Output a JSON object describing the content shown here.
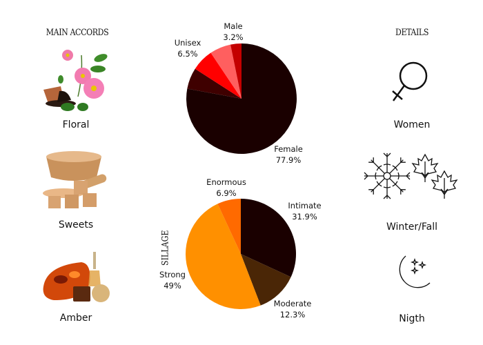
{
  "left_column": {
    "heading": "MAIN ACCORDS",
    "items": [
      {
        "label": "Floral",
        "icon": "rose-flower-image"
      },
      {
        "label": "Sweets",
        "icon": "brown-sugar-image"
      },
      {
        "label": "Amber",
        "icon": "amber-stone-image"
      }
    ]
  },
  "right_column": {
    "heading": "DETAILS",
    "items": [
      {
        "label": "Women",
        "icon": "female-symbol-icon"
      },
      {
        "label": "Winter/Fall",
        "icon": "snowflake-maple-leaves-icon"
      },
      {
        "label": "Nigth",
        "icon": "moon-stars-icon"
      }
    ]
  },
  "sillage_label": "SILLAGE",
  "chart_data": [
    {
      "type": "pie",
      "start": "top",
      "direction": "clockwise",
      "slices": [
        {
          "name": "Female",
          "value": 77.9,
          "label": "77.9%",
          "color": "#1a0000"
        },
        {
          "name": "",
          "value": 6.2,
          "label": "",
          "color": "#3f0000"
        },
        {
          "name": "Unisex",
          "value": 6.5,
          "label": "6.5%",
          "color": "#ff0000"
        },
        {
          "name": "",
          "value": 6.2,
          "label": "",
          "color": "#ff5f5f"
        },
        {
          "name": "Male",
          "value": 3.2,
          "label": "3.2%",
          "color": "#c40000"
        }
      ]
    },
    {
      "type": "pie",
      "start": "top",
      "direction": "clockwise",
      "slices": [
        {
          "name": "Intimate",
          "value": 31.9,
          "label": "31.9%",
          "color": "#1a0000"
        },
        {
          "name": "Moderate",
          "value": 12.3,
          "label": "12.3%",
          "color": "#4a2606"
        },
        {
          "name": "Strong",
          "value": 49,
          "label": "49%",
          "color": "#ff9000"
        },
        {
          "name": "Enormous",
          "value": 6.9,
          "label": "6.9%",
          "color": "#ff6a00"
        }
      ]
    }
  ]
}
